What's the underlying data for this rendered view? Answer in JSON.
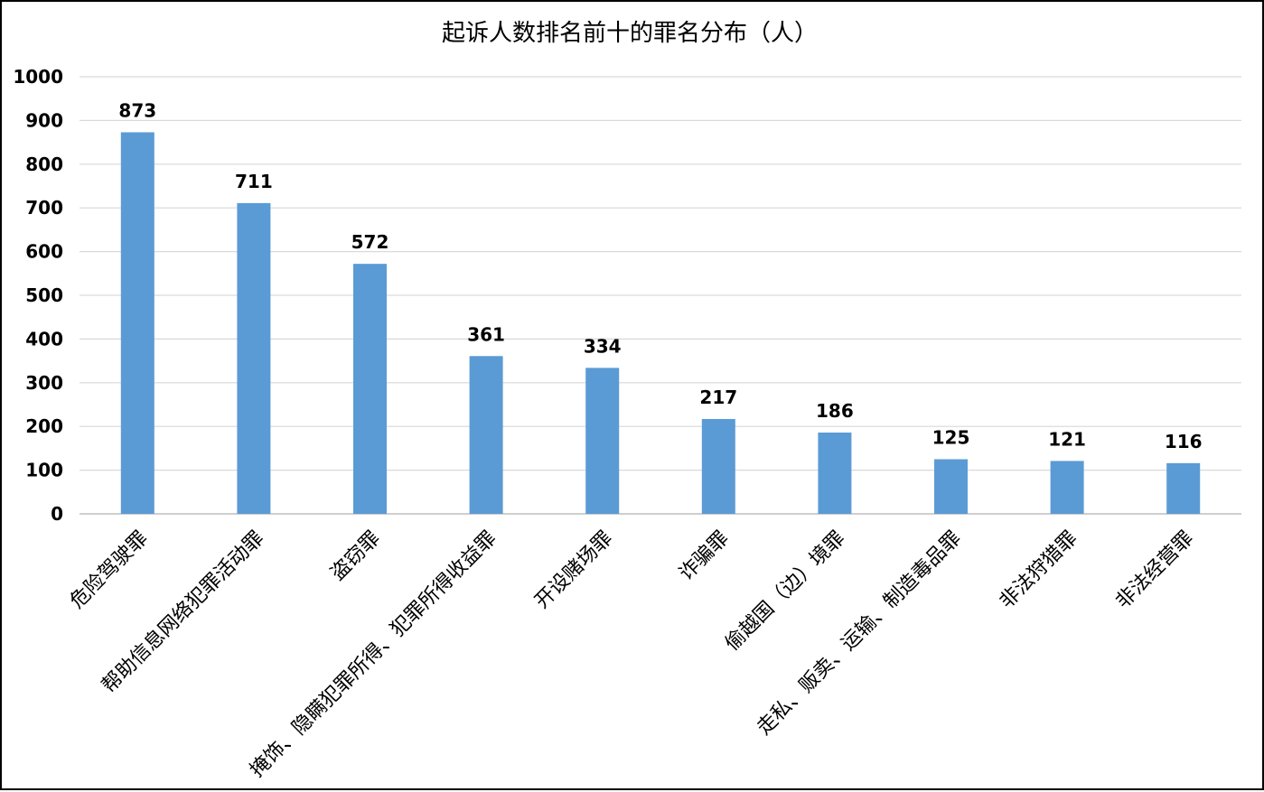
{
  "chart_data": {
    "type": "bar",
    "title": "起诉人数排名前十的罪名分布（人）",
    "xlabel": "",
    "ylabel": "",
    "ylim": [
      0,
      1000
    ],
    "yticks": [
      "0",
      "100",
      "200",
      "300",
      "400",
      "500",
      "600",
      "700",
      "800",
      "900",
      "1000"
    ],
    "grid": true,
    "legend": "none",
    "bar_color": "#5B9BD5",
    "categories": [
      "危险驾驶罪",
      "帮助信息网络犯罪活动罪",
      "盗窃罪",
      "掩饰、隐瞒犯罪所得、犯罪所得收益罪",
      "开设赌场罪",
      "诈骗罪",
      "偷越国（边）境罪",
      "走私、贩卖、运输、制造毒品罪",
      "非法狩猎罪",
      "非法经营罪"
    ],
    "values": [
      873,
      711,
      572,
      361,
      334,
      217,
      186,
      125,
      121,
      116
    ]
  }
}
